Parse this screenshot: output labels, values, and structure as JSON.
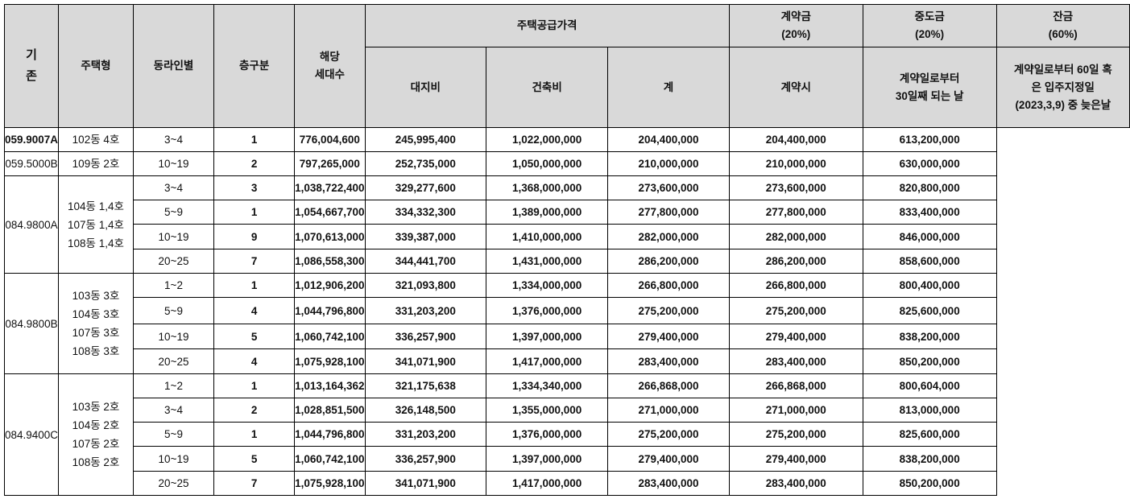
{
  "side_label": [
    "기",
    "존"
  ],
  "headers": {
    "type": "주택형",
    "dongline": "동라인별",
    "floor": "층구분",
    "units": [
      "해당",
      "세대수"
    ],
    "supply_price": "주택공급가격",
    "land": "대지비",
    "building": "건축비",
    "total": "계",
    "deposit": [
      "계약금",
      "(20%)"
    ],
    "deposit_when": "계약시",
    "middle": [
      "중도금",
      "(20%)"
    ],
    "middle_when": [
      "계약일로부터",
      "30일째 되는 날"
    ],
    "balance": [
      "잔금",
      "(60%)"
    ],
    "balance_when": [
      "계약일로부터 60일 혹",
      "은 입주지정일",
      "(2023,3,9) 중 늦은날"
    ]
  },
  "groups": [
    {
      "type": "059.9007A",
      "type_bold": true,
      "dong": [
        "102동 4호"
      ],
      "rows": [
        {
          "floor": "3~4",
          "units": "1",
          "land": "776,004,600",
          "building": "245,995,400",
          "total": "1,022,000,000",
          "deposit": "204,400,000",
          "middle": "204,400,000",
          "balance": "613,200,000"
        }
      ]
    },
    {
      "type": "059.5000B",
      "type_bold": false,
      "dong": [
        "109동 2호"
      ],
      "rows": [
        {
          "floor": "10~19",
          "units": "2",
          "land": "797,265,000",
          "building": "252,735,000",
          "total": "1,050,000,000",
          "deposit": "210,000,000",
          "middle": "210,000,000",
          "balance": "630,000,000"
        }
      ]
    },
    {
      "type": "084.9800A",
      "type_bold": false,
      "dong": [
        "104동 1,4호",
        "107동 1,4호",
        "108동 1,4호"
      ],
      "rows": [
        {
          "floor": "3~4",
          "units": "3",
          "land": "1,038,722,400",
          "building": "329,277,600",
          "total": "1,368,000,000",
          "deposit": "273,600,000",
          "middle": "273,600,000",
          "balance": "820,800,000"
        },
        {
          "floor": "5~9",
          "units": "1",
          "land": "1,054,667,700",
          "building": "334,332,300",
          "total": "1,389,000,000",
          "deposit": "277,800,000",
          "middle": "277,800,000",
          "balance": "833,400,000"
        },
        {
          "floor": "10~19",
          "units": "9",
          "land": "1,070,613,000",
          "building": "339,387,000",
          "total": "1,410,000,000",
          "deposit": "282,000,000",
          "middle": "282,000,000",
          "balance": "846,000,000"
        },
        {
          "floor": "20~25",
          "units": "7",
          "land": "1,086,558,300",
          "building": "344,441,700",
          "total": "1,431,000,000",
          "deposit": "286,200,000",
          "middle": "286,200,000",
          "balance": "858,600,000"
        }
      ]
    },
    {
      "type": "084.9800B",
      "type_bold": false,
      "dong": [
        "103동 3호",
        "104동 3호",
        "107동 3호",
        "108동 3호"
      ],
      "rows": [
        {
          "floor": "1~2",
          "units": "1",
          "land": "1,012,906,200",
          "building": "321,093,800",
          "total": "1,334,000,000",
          "deposit": "266,800,000",
          "middle": "266,800,000",
          "balance": "800,400,000"
        },
        {
          "floor": "5~9",
          "units": "4",
          "land": "1,044,796,800",
          "building": "331,203,200",
          "total": "1,376,000,000",
          "deposit": "275,200,000",
          "middle": "275,200,000",
          "balance": "825,600,000"
        },
        {
          "floor": "10~19",
          "units": "5",
          "land": "1,060,742,100",
          "building": "336,257,900",
          "total": "1,397,000,000",
          "deposit": "279,400,000",
          "middle": "279,400,000",
          "balance": "838,200,000"
        },
        {
          "floor": "20~25",
          "units": "4",
          "land": "1,075,928,100",
          "building": "341,071,900",
          "total": "1,417,000,000",
          "deposit": "283,400,000",
          "middle": "283,400,000",
          "balance": "850,200,000"
        }
      ]
    },
    {
      "type": "084.9400C",
      "type_bold": false,
      "dong": [
        "103동 2호",
        "104동 2호",
        "107동 2호",
        "108동 2호"
      ],
      "rows": [
        {
          "floor": "1~2",
          "units": "1",
          "land": "1,013,164,362",
          "building": "321,175,638",
          "total": "1,334,340,000",
          "deposit": "266,868,000",
          "middle": "266,868,000",
          "balance": "800,604,000"
        },
        {
          "floor": "3~4",
          "units": "2",
          "land": "1,028,851,500",
          "building": "326,148,500",
          "total": "1,355,000,000",
          "deposit": "271,000,000",
          "middle": "271,000,000",
          "balance": "813,000,000"
        },
        {
          "floor": "5~9",
          "units": "1",
          "land": "1,044,796,800",
          "building": "331,203,200",
          "total": "1,376,000,000",
          "deposit": "275,200,000",
          "middle": "275,200,000",
          "balance": "825,600,000"
        },
        {
          "floor": "10~19",
          "units": "5",
          "land": "1,060,742,100",
          "building": "336,257,900",
          "total": "1,397,000,000",
          "deposit": "279,400,000",
          "middle": "279,400,000",
          "balance": "838,200,000"
        },
        {
          "floor": "20~25",
          "units": "7",
          "land": "1,075,928,100",
          "building": "341,071,900",
          "total": "1,417,000,000",
          "deposit": "283,400,000",
          "middle": "283,400,000",
          "balance": "850,200,000"
        }
      ]
    }
  ],
  "chart_data": {
    "type": "table",
    "columns": [
      "주택형",
      "동라인별",
      "층구분",
      "해당 세대수",
      "대지비",
      "건축비",
      "계",
      "계약금 (20%) 계약시",
      "중도금 (20%) 계약일로부터 30일째 되는 날",
      "잔금 (60%)"
    ],
    "rows": [
      [
        "059.9007A",
        "102동 4호",
        "3~4",
        "1",
        "776,004,600",
        "245,995,400",
        "1,022,000,000",
        "204,400,000",
        "204,400,000",
        "613,200,000"
      ],
      [
        "059.5000B",
        "109동 2호",
        "10~19",
        "2",
        "797,265,000",
        "252,735,000",
        "1,050,000,000",
        "210,000,000",
        "210,000,000",
        "630,000,000"
      ],
      [
        "084.9800A",
        "104동 1,4호 / 107동 1,4호 / 108동 1,4호",
        "3~4",
        "3",
        "1,038,722,400",
        "329,277,600",
        "1,368,000,000",
        "273,600,000",
        "273,600,000",
        "820,800,000"
      ],
      [
        "084.9800A",
        "104동 1,4호 / 107동 1,4호 / 108동 1,4호",
        "5~9",
        "1",
        "1,054,667,700",
        "334,332,300",
        "1,389,000,000",
        "277,800,000",
        "277,800,000",
        "833,400,000"
      ],
      [
        "084.9800A",
        "104동 1,4호 / 107동 1,4호 / 108동 1,4호",
        "10~19",
        "9",
        "1,070,613,000",
        "339,387,000",
        "1,410,000,000",
        "282,000,000",
        "282,000,000",
        "846,000,000"
      ],
      [
        "084.9800A",
        "104동 1,4호 / 107동 1,4호 / 108동 1,4호",
        "20~25",
        "7",
        "1,086,558,300",
        "344,441,700",
        "1,431,000,000",
        "286,200,000",
        "286,200,000",
        "858,600,000"
      ],
      [
        "084.9800B",
        "103동 3호 / 104동 3호 / 107동 3호 / 108동 3호",
        "1~2",
        "1",
        "1,012,906,200",
        "321,093,800",
        "1,334,000,000",
        "266,800,000",
        "266,800,000",
        "800,400,000"
      ],
      [
        "084.9800B",
        "103동 3호 / 104동 3호 / 107동 3호 / 108동 3호",
        "5~9",
        "4",
        "1,044,796,800",
        "331,203,200",
        "1,376,000,000",
        "275,200,000",
        "275,200,000",
        "825,600,000"
      ],
      [
        "084.9800B",
        "103동 3호 / 104동 3호 / 107동 3호 / 108동 3호",
        "10~19",
        "5",
        "1,060,742,100",
        "336,257,900",
        "1,397,000,000",
        "279,400,000",
        "279,400,000",
        "838,200,000"
      ],
      [
        "084.9800B",
        "103동 3호 / 104동 3호 / 107동 3호 / 108동 3호",
        "20~25",
        "4",
        "1,075,928,100",
        "341,071,900",
        "1,417,000,000",
        "283,400,000",
        "283,400,000",
        "850,200,000"
      ],
      [
        "084.9400C",
        "103동 2호 / 104동 2호 / 107동 2호 / 108동 2호",
        "1~2",
        "1",
        "1,013,164,362",
        "321,175,638",
        "1,334,340,000",
        "266,868,000",
        "266,868,000",
        "800,604,000"
      ],
      [
        "084.9400C",
        "103동 2호 / 104동 2호 / 107동 2호 / 108동 2호",
        "3~4",
        "2",
        "1,028,851,500",
        "326,148,500",
        "1,355,000,000",
        "271,000,000",
        "271,000,000",
        "813,000,000"
      ],
      [
        "084.9400C",
        "103동 2호 / 104동 2호 / 107동 2호 / 108동 2호",
        "5~9",
        "1",
        "1,044,796,800",
        "331,203,200",
        "1,376,000,000",
        "275,200,000",
        "275,200,000",
        "825,600,000"
      ],
      [
        "084.9400C",
        "103동 2호 / 104동 2호 / 107동 2호 / 108동 2호",
        "10~19",
        "5",
        "1,060,742,100",
        "336,257,900",
        "1,397,000,000",
        "279,400,000",
        "279,400,000",
        "838,200,000"
      ],
      [
        "084.9400C",
        "103동 2호 / 104동 2호 / 107동 2호 / 108동 2호",
        "20~25",
        "7",
        "1,075,928,100",
        "341,071,900",
        "1,417,000,000",
        "283,400,000",
        "283,400,000",
        "850,200,000"
      ]
    ]
  }
}
